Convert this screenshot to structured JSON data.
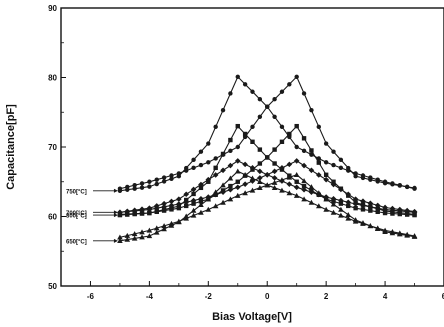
{
  "chart_data": {
    "type": "line",
    "xlabel": "Bias Voltage[V]",
    "ylabel": "Capacitance[pF]",
    "xlim": [
      -7,
      6
    ],
    "ylim": [
      50,
      90
    ],
    "xticks": [
      -6,
      -4,
      -2,
      0,
      2,
      4,
      6
    ],
    "yticks": [
      50,
      60,
      70,
      80,
      90
    ],
    "grid": false,
    "line_color": "#1a1a1a",
    "series": [
      {
        "name": "750[°C]",
        "marker": "circle",
        "sweeps": [
          {
            "x": [
              -5,
              -4,
              -3,
              -2,
              -1,
              0,
              1,
              2,
              3,
              4,
              5
            ],
            "y": [
              63.7,
              64.3,
              65.8,
              70.5,
              80.1,
              75.8,
              70.0,
              67.8,
              66.2,
              65.0,
              64.0
            ]
          },
          {
            "x": [
              -5,
              -4,
              -3,
              -2,
              -1,
              0,
              1,
              2,
              3,
              4,
              5
            ],
            "y": [
              64.0,
              65.0,
              66.2,
              67.8,
              70.0,
              75.8,
              80.1,
              70.5,
              65.8,
              64.8,
              64.1
            ]
          }
        ]
      },
      {
        "name": "800[°C]",
        "marker": "square",
        "sweeps": [
          {
            "x": [
              -5,
              -4,
              -3,
              -2,
              -1,
              0,
              1,
              2,
              3,
              4,
              5
            ],
            "y": [
              60.2,
              60.5,
              61.5,
              65.0,
              73.0,
              68.5,
              65.0,
              62.5,
              61.2,
              60.5,
              60.2
            ]
          },
          {
            "x": [
              -5,
              -4,
              -3,
              -2,
              -1,
              0,
              1,
              2,
              3,
              4,
              5
            ],
            "y": [
              60.3,
              60.5,
              61.2,
              62.5,
              65.0,
              68.5,
              73.0,
              66.0,
              62.0,
              60.8,
              60.3
            ]
          }
        ]
      },
      {
        "name": "700[°C]",
        "marker": "diamond",
        "sweeps": [
          {
            "x": [
              -5,
              -4,
              -3,
              -2,
              -1,
              0,
              1,
              2,
              3,
              4,
              5
            ],
            "y": [
              60.6,
              61.2,
              62.5,
              65.3,
              68.0,
              66.0,
              64.2,
              62.8,
              61.8,
              61.0,
              60.6
            ]
          },
          {
            "x": [
              -5,
              -4,
              -3,
              -2,
              -1,
              0,
              1,
              2,
              3,
              4,
              5
            ],
            "y": [
              60.6,
              61.0,
              61.8,
              62.8,
              64.2,
              66.0,
              68.0,
              65.3,
              62.5,
              61.3,
              60.7
            ]
          }
        ]
      },
      {
        "name": "650[°C]",
        "marker": "triangle",
        "sweeps": [
          {
            "x": [
              -5,
              -4,
              -3,
              -2,
              -1,
              0,
              1,
              2,
              3,
              4,
              5
            ],
            "y": [
              56.5,
              57.2,
              59.2,
              62.5,
              66.5,
              64.5,
              63.0,
              61.0,
              59.3,
              58.0,
              57.2
            ]
          },
          {
            "x": [
              -5,
              -4,
              -3,
              -2,
              -1,
              0,
              1,
              2,
              3,
              4,
              5
            ],
            "y": [
              57.0,
              58.0,
              59.3,
              61.0,
              63.0,
              64.5,
              66.0,
              62.5,
              59.5,
              57.8,
              57.1
            ]
          }
        ]
      }
    ]
  }
}
